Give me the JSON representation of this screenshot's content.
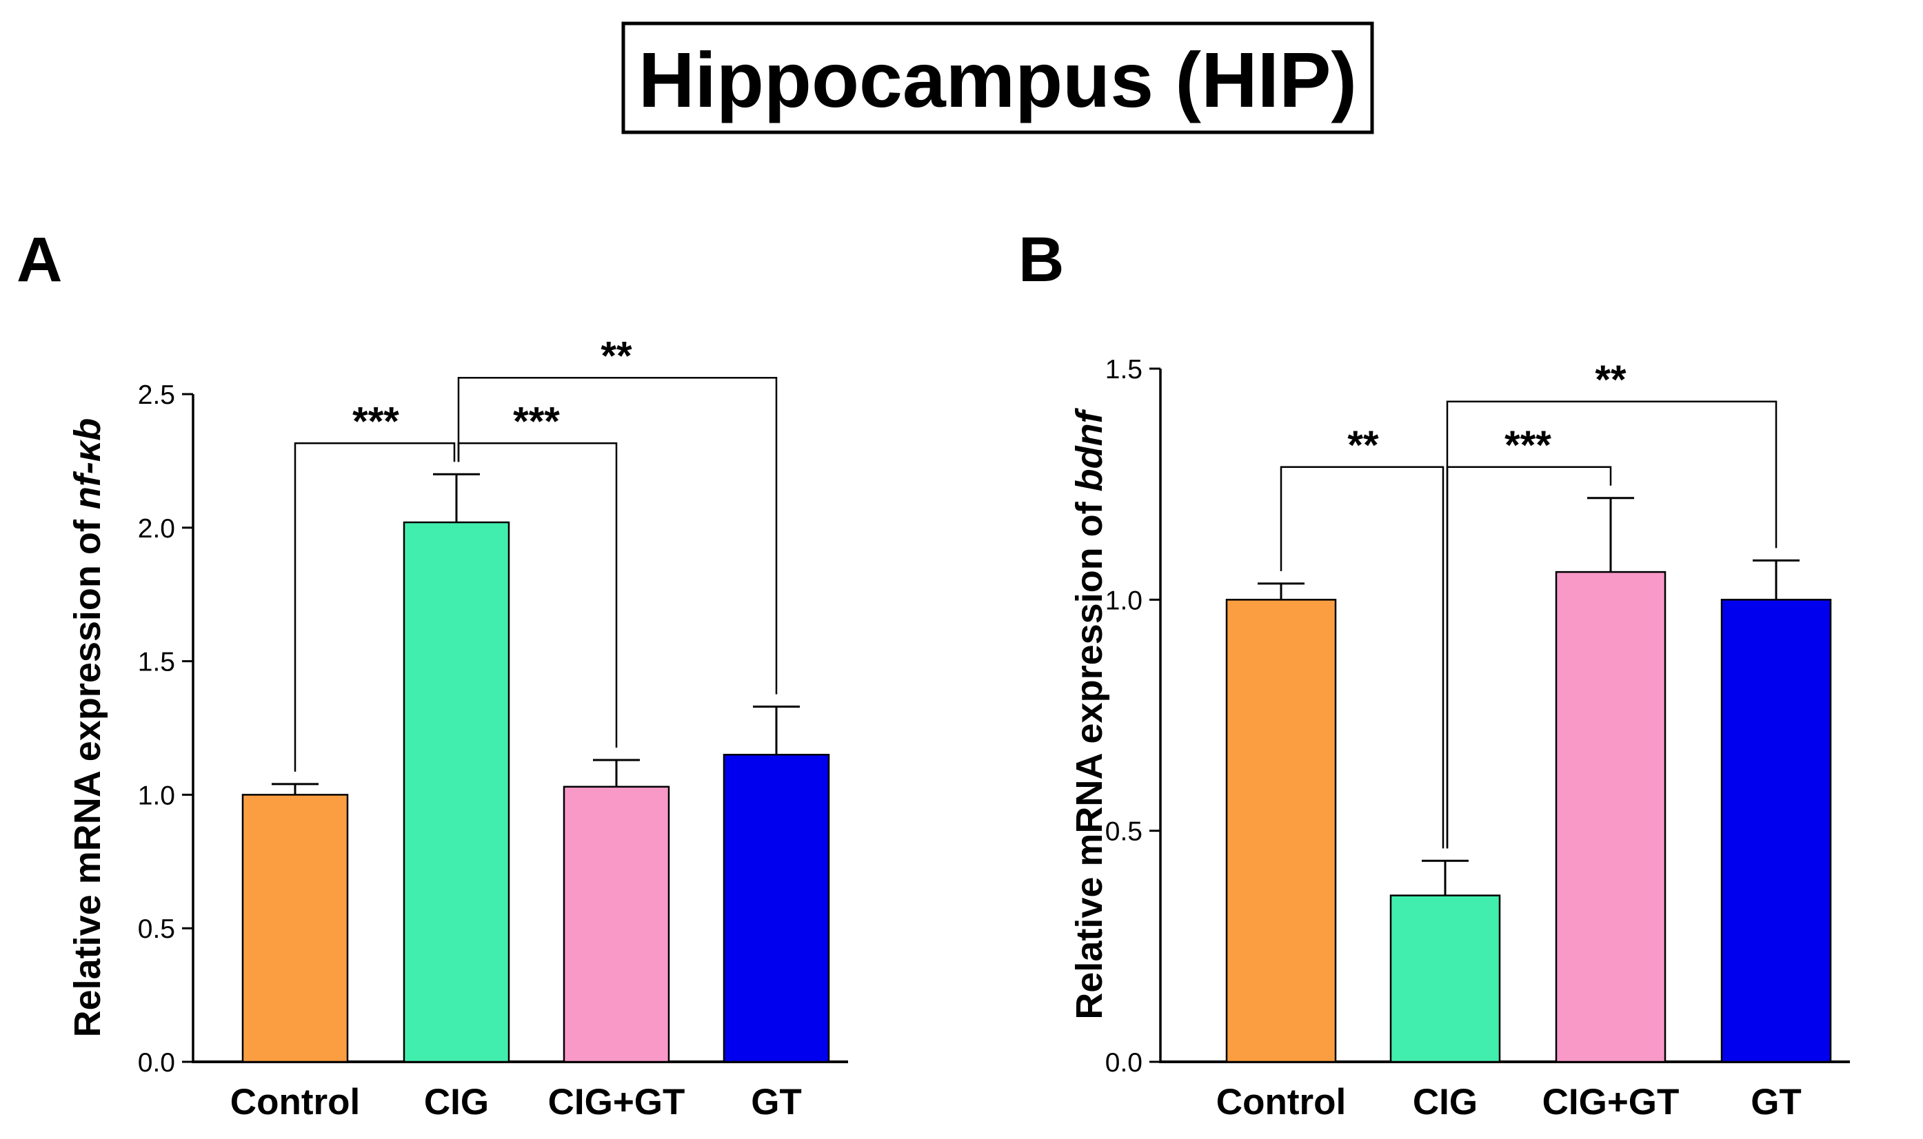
{
  "figure_title": "Hippocampus (HIP)",
  "colors": {
    "Control": "#FB9E41",
    "CIG": "#42EEAE",
    "CIG+GT": "#F899C8",
    "GT": "#0000EE",
    "axis": "#000000"
  },
  "chart_data": [
    {
      "panel": "A",
      "type": "bar",
      "title": "",
      "xlabel": "",
      "ylabel_prefix": "Relative mRNA expression of ",
      "ylabel_gene": "nf-κb",
      "ylim": [
        0,
        2.5
      ],
      "yticks": [
        "0.0",
        "0.5",
        "1.0",
        "1.5",
        "2.0",
        "2.5"
      ],
      "categories": [
        "Control",
        "CIG",
        "CIG+GT",
        "GT"
      ],
      "values": [
        1.0,
        2.02,
        1.03,
        1.15
      ],
      "errors": [
        0.04,
        0.18,
        0.1,
        0.18
      ],
      "comparisons": [
        {
          "from": "CIG",
          "to": "Control",
          "label": "***",
          "level": 1
        },
        {
          "from": "CIG",
          "to": "CIG+GT",
          "label": "***",
          "level": 1
        },
        {
          "from": "CIG",
          "to": "GT",
          "label": "**",
          "level": 2
        }
      ]
    },
    {
      "panel": "B",
      "type": "bar",
      "title": "",
      "xlabel": "",
      "ylabel_prefix": "Relative mRNA expression of ",
      "ylabel_gene": "bdnf",
      "ylim": [
        0,
        1.5
      ],
      "yticks": [
        "0.0",
        "0.5",
        "1.0",
        "1.5"
      ],
      "categories": [
        "Control",
        "CIG",
        "CIG+GT",
        "GT"
      ],
      "values": [
        1.0,
        0.36,
        1.06,
        1.0
      ],
      "errors": [
        0.035,
        0.075,
        0.16,
        0.085
      ],
      "comparisons": [
        {
          "from": "CIG",
          "to": "Control",
          "label": "**",
          "level": 1
        },
        {
          "from": "CIG",
          "to": "CIG+GT",
          "label": "***",
          "level": 1
        },
        {
          "from": "CIG",
          "to": "GT",
          "label": "**",
          "level": 2
        }
      ]
    }
  ]
}
